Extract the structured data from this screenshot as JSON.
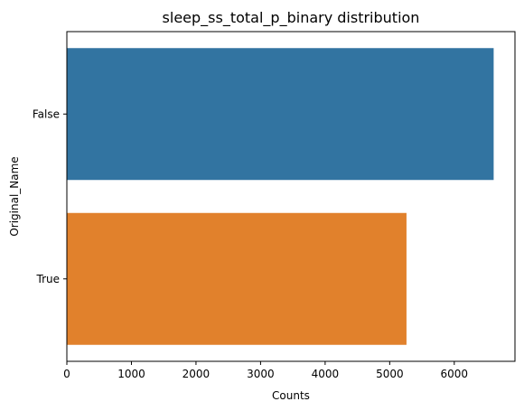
{
  "chart_data": {
    "type": "bar",
    "orientation": "horizontal",
    "title": "sleep_ss_total_p_binary distribution",
    "xlabel": "Counts",
    "ylabel": "Original_Name",
    "categories": [
      "False",
      "True"
    ],
    "values": [
      6610,
      5260
    ],
    "colors": [
      "#3274a1",
      "#e1812c"
    ],
    "xlim": [
      0,
      6940
    ],
    "xticks": [
      0,
      1000,
      2000,
      3000,
      4000,
      5000,
      6000
    ],
    "xtick_labels": [
      "0",
      "1000",
      "2000",
      "3000",
      "4000",
      "5000",
      "6000"
    ],
    "grid": false,
    "legend": "none"
  }
}
